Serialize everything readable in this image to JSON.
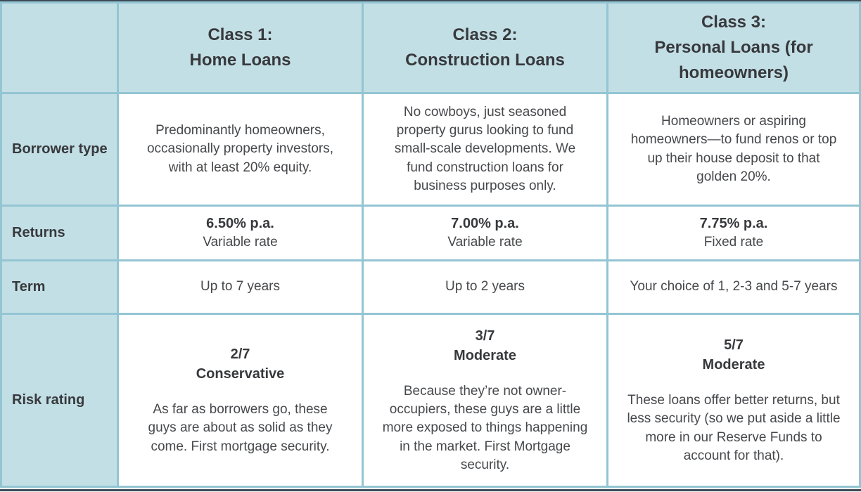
{
  "page": {
    "colors": {
      "cell_background": "#c3dfe6",
      "grid_border": "#93c5d3",
      "heading_text": "#37393c",
      "body_text": "#46484b",
      "page_rule": "#3d4b57"
    }
  },
  "table": {
    "header": {
      "columns": [
        {
          "line1": "Class 1:",
          "line2": "Home Loans"
        },
        {
          "line1": "Class 2:",
          "line2": "Construction Loans"
        },
        {
          "line1": "Class 3:",
          "line2": "Personal Loans (for homeowners)"
        }
      ]
    },
    "rows": {
      "borrower": {
        "label": "Borrower type",
        "cells": [
          "Predominantly homeowners, occasionally property investors, with at least 20% equity.",
          "No cowboys, just seasoned property gurus looking to fund small-scale developments. We fund construction loans for business purposes only.",
          "Homeowners or aspiring homeowners—to fund renos or top up their house deposit to that golden 20%."
        ]
      },
      "returns": {
        "label": "Returns",
        "cells": [
          {
            "rate": "6.50% p.a.",
            "type": "Variable rate"
          },
          {
            "rate": "7.00% p.a.",
            "type": "Variable rate"
          },
          {
            "rate": "7.75% p.a.",
            "type": "Fixed rate"
          }
        ]
      },
      "term": {
        "label": "Term",
        "cells": [
          "Up to 7 years",
          "Up to 2 years",
          "Your choice of 1, 2-3 and 5-7 years"
        ]
      },
      "risk": {
        "label": "Risk rating",
        "cells": [
          {
            "score": "2/7",
            "level": "Conservative",
            "description": "As far as borrowers go, these guys are about as solid as they come. First mortgage security."
          },
          {
            "score": "3/7",
            "level": "Moderate",
            "description": "Because they’re not owner-occupiers, these guys are a little more exposed to things happening in the market. First Mortgage security."
          },
          {
            "score": "5/7",
            "level": "Moderate",
            "description": "These loans offer better returns, but less security (so we put aside a little more in our Reserve Funds to account for that)."
          }
        ]
      }
    }
  }
}
